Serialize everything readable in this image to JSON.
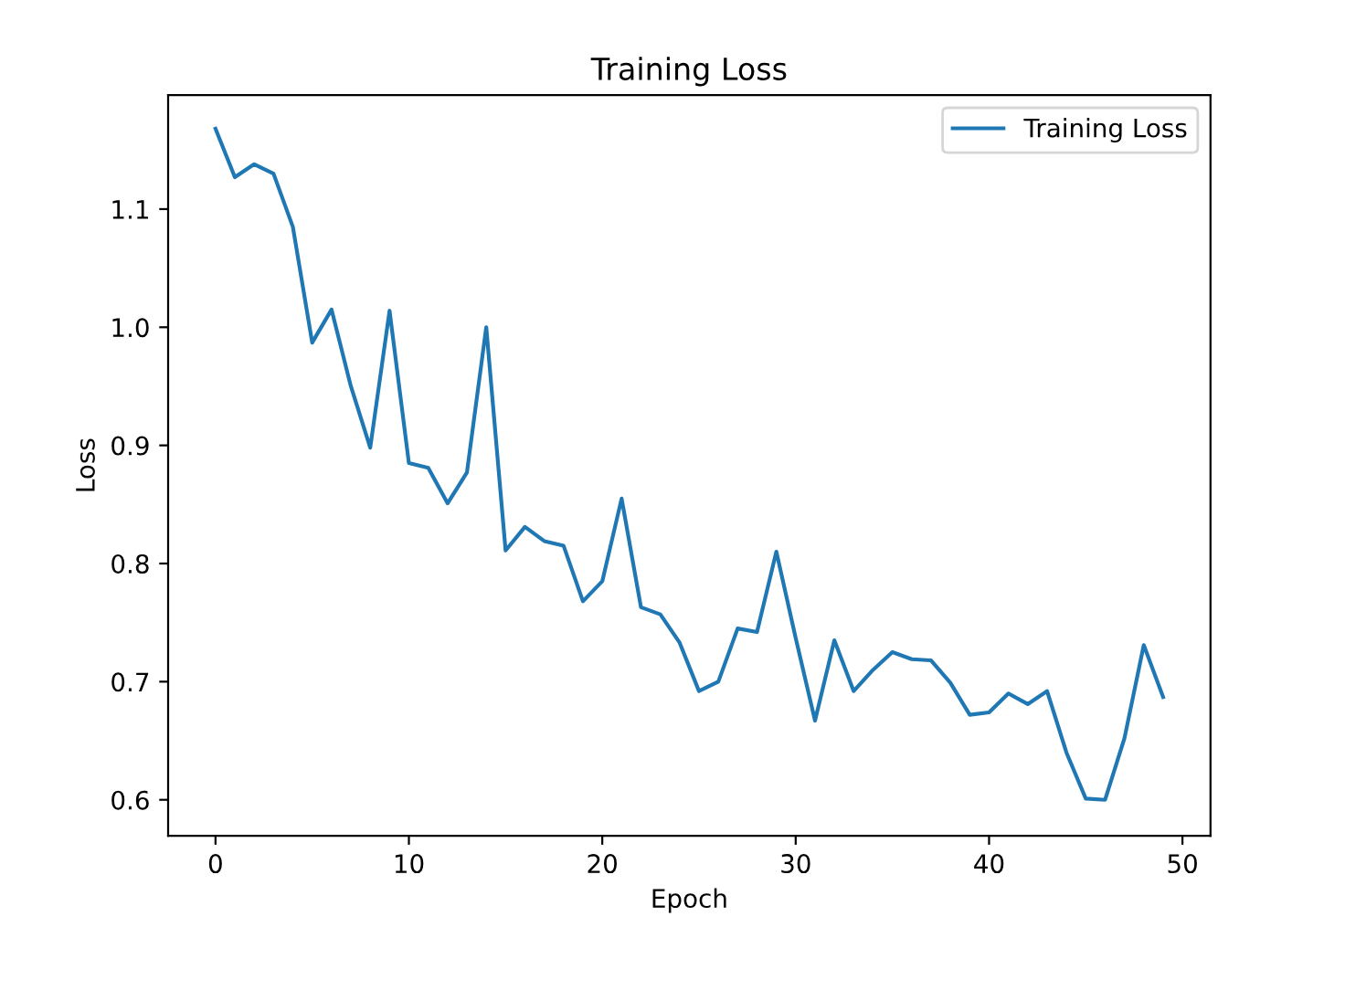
{
  "chart_data": {
    "type": "line",
    "title": "Training Loss",
    "xlabel": "Epoch",
    "ylabel": "Loss",
    "x": [
      0,
      1,
      2,
      3,
      4,
      5,
      6,
      7,
      8,
      9,
      10,
      11,
      12,
      13,
      14,
      15,
      16,
      17,
      18,
      19,
      20,
      21,
      22,
      23,
      24,
      25,
      26,
      27,
      28,
      29,
      30,
      31,
      32,
      33,
      34,
      35,
      36,
      37,
      38,
      39,
      40,
      41,
      42,
      43,
      44,
      45,
      46,
      47,
      48,
      49
    ],
    "series": [
      {
        "name": "Training Loss",
        "color": "#1f77b4",
        "values": [
          1.168,
          1.127,
          1.138,
          1.13,
          1.085,
          0.987,
          1.015,
          0.95,
          0.898,
          1.014,
          0.885,
          0.881,
          0.851,
          0.877,
          1.0,
          0.811,
          0.831,
          0.819,
          0.815,
          0.768,
          0.785,
          0.855,
          0.763,
          0.757,
          0.733,
          0.692,
          0.7,
          0.745,
          0.742,
          0.81,
          0.737,
          0.667,
          0.735,
          0.692,
          0.71,
          0.725,
          0.719,
          0.718,
          0.699,
          0.672,
          0.674,
          0.69,
          0.681,
          0.692,
          0.64,
          0.601,
          0.6,
          0.652,
          0.731,
          0.687
        ]
      }
    ],
    "xlim": [
      -2.45,
      51.45
    ],
    "ylim": [
      0.5695,
      1.1965
    ],
    "xticks": [
      0,
      10,
      20,
      30,
      40,
      50
    ],
    "yticks": [
      0.6,
      0.7,
      0.8,
      0.9,
      {
        "value": 1.0,
        "label": "1.0"
      },
      1.1
    ],
    "legend": "top right",
    "grid": false
  }
}
